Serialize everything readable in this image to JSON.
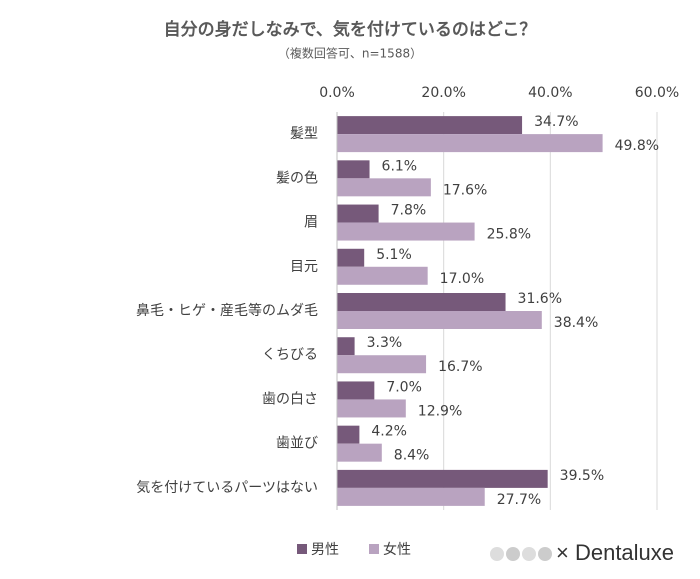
{
  "chart_data": {
    "type": "bar",
    "orientation": "horizontal",
    "title": "自分の身だしなみで、気を付けているのはどこ？",
    "subtitle": "（複数回答可、n=1588）",
    "categories": [
      "髪型",
      "髪の色",
      "眉",
      "目元",
      "鼻毛・ヒゲ・産毛等のムダ毛",
      "くちびる",
      "歯の白さ",
      "歯並び",
      "気を付けているパーツはない"
    ],
    "series": [
      {
        "name": "男性",
        "color": "#76597a",
        "values": [
          34.7,
          6.1,
          7.8,
          5.1,
          31.6,
          3.3,
          7.0,
          4.2,
          39.5
        ],
        "value_labels": [
          "34.7%",
          "6.1%",
          "7.8%",
          "5.1%",
          "31.6%",
          "3.3%",
          "7.0%",
          "4.2%",
          "39.5%"
        ]
      },
      {
        "name": "女性",
        "color": "#b9a3c0",
        "values": [
          49.8,
          17.6,
          25.8,
          17.0,
          38.4,
          16.7,
          12.9,
          8.4,
          27.7
        ],
        "value_labels": [
          "49.8%",
          "17.6%",
          "25.8%",
          "17.0%",
          "38.4%",
          "16.7%",
          "12.9%",
          "8.4%",
          "27.7%"
        ]
      }
    ],
    "xlim": [
      0,
      60
    ],
    "xticks": [
      {
        "value": 0,
        "label": "0.0%"
      },
      {
        "value": 20,
        "label": "20.0%"
      },
      {
        "value": 40,
        "label": "40.0%"
      },
      {
        "value": 60,
        "label": "60.0%"
      }
    ],
    "grid": true,
    "legend": "bottom"
  },
  "brand": "× Dentaluxe"
}
